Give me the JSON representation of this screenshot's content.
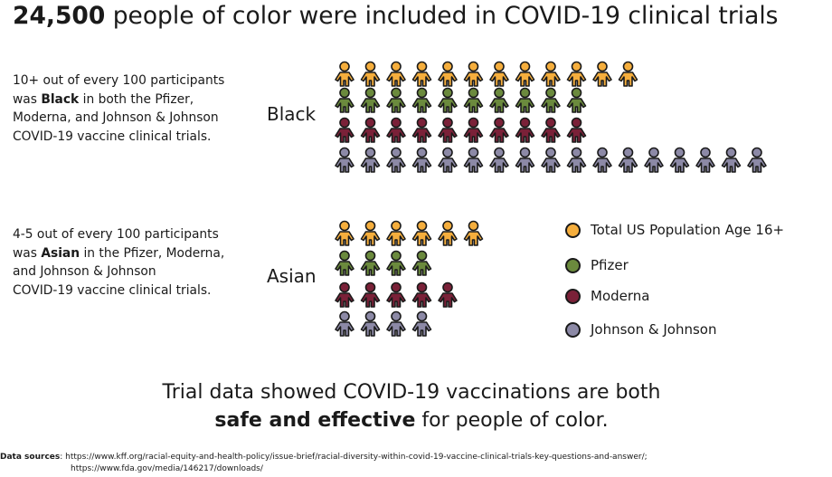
{
  "headline": {
    "number": "24,500",
    "rest": " people of color were included in COVID-19 clinical trials"
  },
  "black_blurb": {
    "line1": "10+ out of every 100 participants",
    "pre": "was ",
    "bold": "Black",
    "post": " in both the Pfizer,",
    "line3": "Moderna, and Johnson & Johnson",
    "line4": "COVID-19 vaccine clinical trials."
  },
  "asian_blurb": {
    "line1": "4-5 out of every 100 participants",
    "pre": "was ",
    "bold": "Asian",
    "post": " in the Pfizer, Moderna,",
    "line3": "and Johnson & Johnson",
    "line4": "COVID-19 vaccine clinical trials."
  },
  "legend": [
    {
      "label": "Total US Population Age 16+",
      "color": "#f5ae3d"
    },
    {
      "label": "Pfizer",
      "color": "#6b8a3d"
    },
    {
      "label": "Moderna",
      "color": "#7a2138"
    },
    {
      "label": "Johnson & Johnson",
      "color": "#8c89a6"
    }
  ],
  "conclusion": {
    "line1": "Trial data showed COVID-19 vaccinations are both",
    "bold": "safe and effective",
    "rest": " for people of color."
  },
  "sources": {
    "label": "Data sources",
    "line1": ": https://www.kff.org/racial-equity-and-health-policy/issue-brief/racial-diversity-within-covid-19-vaccine-clinical-trials-key-questions-and-answer/;",
    "line2": "https://www.fda.gov/media/146217/downloads/"
  },
  "chart_data": {
    "type": "pictograph",
    "groups": [
      {
        "label": "Black",
        "series": [
          {
            "name": "Total US Population Age 16+",
            "count": 12,
            "color": "#f5ae3d"
          },
          {
            "name": "Pfizer",
            "count": 10,
            "color": "#6b8a3d"
          },
          {
            "name": "Moderna",
            "count": 10,
            "color": "#7a2138"
          },
          {
            "name": "Johnson & Johnson",
            "count": 17,
            "color": "#8c89a6"
          }
        ]
      },
      {
        "label": "Asian",
        "series": [
          {
            "name": "Total US Population Age 16+",
            "count": 6,
            "color": "#f5ae3d"
          },
          {
            "name": "Pfizer",
            "count": 4,
            "color": "#6b8a3d"
          },
          {
            "name": "Moderna",
            "count": 5,
            "color": "#7a2138"
          },
          {
            "name": "Johnson & Johnson",
            "count": 4,
            "color": "#8c89a6"
          }
        ]
      }
    ]
  }
}
